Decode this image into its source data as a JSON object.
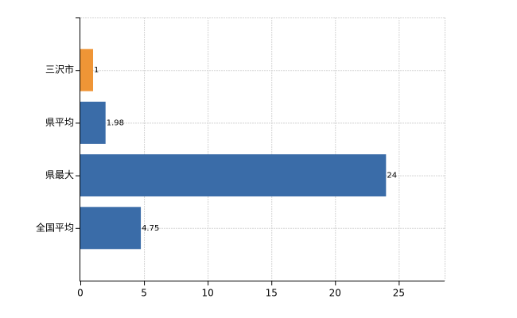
{
  "chart_data": {
    "type": "bar",
    "orientation": "horizontal",
    "categories": [
      "三沢市",
      "県平均",
      "県最大",
      "全国平均"
    ],
    "values": [
      1,
      1.98,
      24,
      4.75
    ],
    "colors": [
      "#ef9536",
      "#3a6ca8",
      "#3a6ca8",
      "#3a6ca8"
    ],
    "xlim": [
      0,
      28.6
    ],
    "xticks": [
      0,
      5,
      10,
      15,
      20,
      25
    ],
    "grid": true
  }
}
